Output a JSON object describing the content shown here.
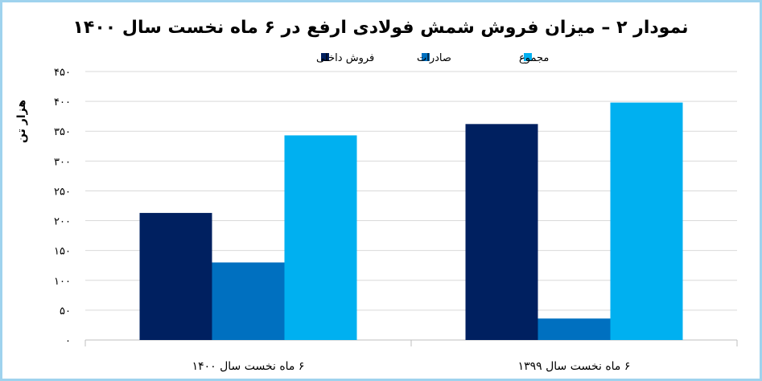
{
  "chart_data": {
    "type": "bar",
    "title": "نمودار ۲ – میزان فروش شمش فولادی ارفع در ۶ ماه نخست سال ۱۴۰۰",
    "ylabel": "هزار تن",
    "xlabel": "",
    "ylim": [
      0,
      450
    ],
    "yticks": [
      0,
      50,
      100,
      150,
      200,
      250,
      300,
      350,
      400,
      450
    ],
    "ytick_labels": [
      "۰",
      "۵۰",
      "۱۰۰",
      "۱۵۰",
      "۲۰۰",
      "۲۵۰",
      "۳۰۰",
      "۳۵۰",
      "۴۰۰",
      "۴۵۰"
    ],
    "grid": true,
    "legend_position": "top",
    "categories": [
      "۶ ماه نخست سال ۱۳۹۹",
      "۶ ماه نخست سال ۱۴۰۰"
    ],
    "series": [
      {
        "name": "فروش داخلی",
        "color": "#002060",
        "values": [
          362,
          213
        ]
      },
      {
        "name": "صادرات",
        "color": "#0070c0",
        "values": [
          36,
          130
        ]
      },
      {
        "name": "مجموع",
        "color": "#00b0f0",
        "values": [
          398,
          343
        ]
      }
    ]
  }
}
